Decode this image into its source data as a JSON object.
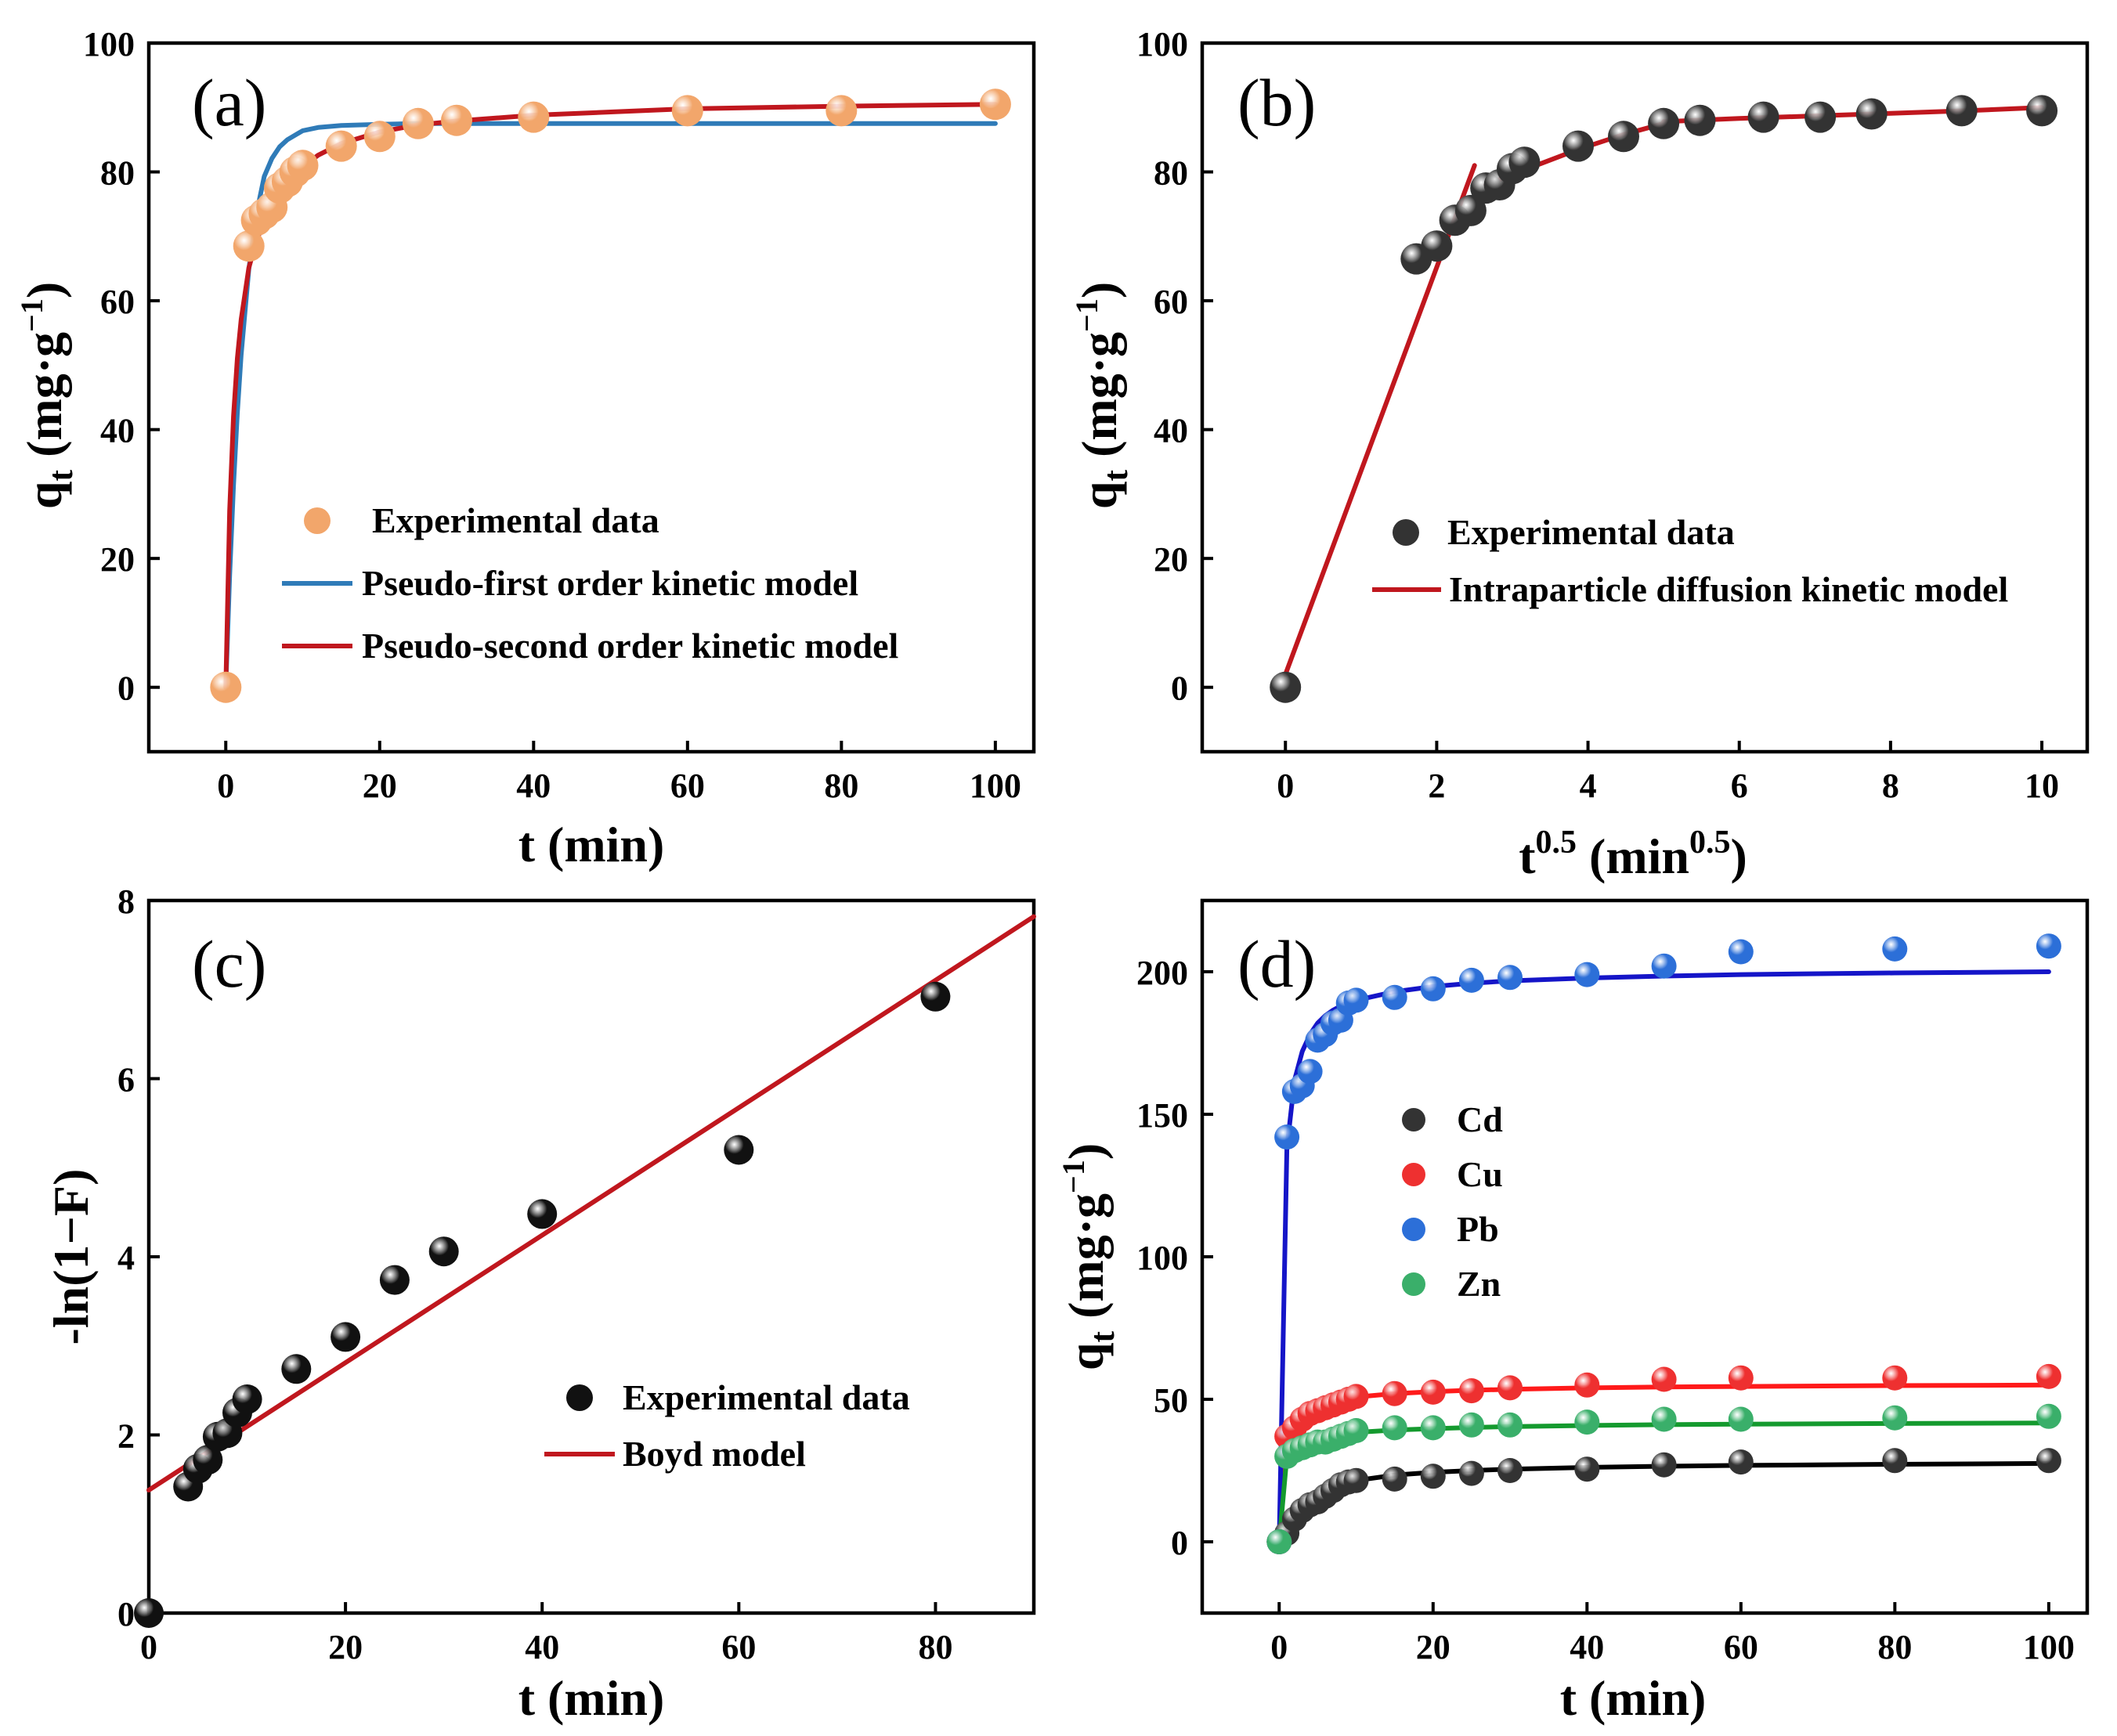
{
  "chart_data": [
    {
      "type": "scatter",
      "panel": "(a)",
      "xlabel": "t (min)",
      "ylabel": {
        "main": "q",
        "sub": "t",
        "unit_open": " (mg·g",
        "unit_sup": "−1",
        "unit_close": ")"
      },
      "xlim": [
        -10,
        105
      ],
      "ylim": [
        -10,
        100
      ],
      "xticks": [
        "0",
        "20",
        "40",
        "60",
        "80",
        "100"
      ],
      "xtick_values": [
        0,
        20,
        40,
        60,
        80,
        100
      ],
      "yticks": [
        "0",
        "20",
        "40",
        "60",
        "80",
        "100"
      ],
      "ytick_values": [
        0,
        20,
        40,
        60,
        80,
        100
      ],
      "legend": {
        "position": "center-left",
        "entries": [
          "Experimental data",
          "Pseudo-first order kinetic model",
          "Pseudo-second order kinetic model"
        ]
      },
      "series": [
        {
          "name": "Experimental data",
          "kind": "points",
          "color": "#F2A66B",
          "x": [
            0,
            3,
            4,
            5,
            6,
            7,
            8,
            9,
            10,
            15,
            20,
            25,
            30,
            40,
            60,
            80,
            100
          ],
          "y": [
            0,
            68.5,
            72.5,
            73.5,
            74.5,
            77.5,
            78.5,
            80,
            81,
            84,
            85.5,
            87.5,
            88,
            88.5,
            89.5,
            89.5,
            90.5
          ]
        },
        {
          "name": "Pseudo-first order kinetic model",
          "kind": "line",
          "color": "#2F7BB8",
          "x": [
            0,
            0.5,
            1,
            1.5,
            2,
            3,
            4,
            5,
            6,
            7,
            8,
            10,
            12,
            15,
            20,
            25,
            30,
            40,
            60,
            80,
            100
          ],
          "y": [
            0,
            17.3,
            31.2,
            42.5,
            51.6,
            64.9,
            73.6,
            79.3,
            82.1,
            83.9,
            85.0,
            86.4,
            86.9,
            87.2,
            87.4,
            87.5,
            87.5,
            87.5,
            87.5,
            87.5,
            87.5
          ]
        },
        {
          "name": "Pseudo-second order kinetic model",
          "kind": "line",
          "color": "#C0171E",
          "x": [
            0,
            0.5,
            1,
            1.5,
            2,
            3,
            4,
            5,
            6,
            7,
            8,
            10,
            12,
            15,
            20,
            25,
            30,
            40,
            60,
            80,
            100
          ],
          "y": [
            0,
            27.4,
            42.0,
            51.0,
            57.1,
            65.1,
            69.4,
            72.2,
            74.5,
            76.6,
            78.2,
            80.8,
            82.6,
            84.4,
            86.2,
            87.3,
            87.9,
            88.8,
            89.8,
            90.2,
            90.5
          ]
        }
      ]
    },
    {
      "type": "scatter",
      "panel": "(b)",
      "xlabel": {
        "base": "t",
        "sup": "0.5",
        "mid": " (min",
        "sup2": "0.5",
        "close": ")"
      },
      "ylabel": {
        "main": "q",
        "sub": "t",
        "unit_open": " (mg·g",
        "unit_sup": "−1",
        "unit_close": ")"
      },
      "xlim": [
        -1.1,
        10.6
      ],
      "ylim": [
        -10,
        100
      ],
      "xticks": [
        "0",
        "2",
        "4",
        "6",
        "8",
        "10"
      ],
      "xtick_values": [
        0,
        2,
        4,
        6,
        8,
        10
      ],
      "yticks": [
        "0",
        "20",
        "40",
        "60",
        "80",
        "100"
      ],
      "ytick_values": [
        0,
        20,
        40,
        60,
        80,
        100
      ],
      "legend": {
        "position": "center-right",
        "entries": [
          "Experimental data",
          "Intraparticle diffusion kinetic model"
        ]
      },
      "series": [
        {
          "name": "Experimental data",
          "kind": "points",
          "color": "#333333",
          "x": [
            0,
            1.73,
            2.0,
            2.24,
            2.45,
            2.65,
            2.83,
            3.0,
            3.16,
            3.87,
            4.47,
            5.0,
            5.48,
            6.32,
            7.07,
            7.75,
            8.94,
            10.0
          ],
          "y": [
            0,
            66.5,
            68.5,
            72.5,
            74,
            77.5,
            78,
            80.5,
            81.5,
            84,
            85.5,
            87.5,
            88,
            88.5,
            88.5,
            89,
            89.5,
            89.5
          ]
        },
        {
          "name": "Intraparticle diffusion kinetic model",
          "kind": "line",
          "color": "#C0171E",
          "segments": [
            {
              "x": [
                0,
                2.5
              ],
              "y": [
                2,
                81
              ]
            },
            {
              "x": [
                2.65,
                3.2,
                3.87,
                4.47,
                5.0
              ],
              "y": [
                78,
                80.5,
                83.5,
                85.8,
                87.5
              ]
            },
            {
              "x": [
                5.0,
                6.0,
                7.0,
                8.0,
                9.0,
                10.0
              ],
              "y": [
                87.8,
                88.3,
                88.7,
                89.1,
                89.5,
                90.0
              ]
            }
          ]
        }
      ]
    },
    {
      "type": "scatter",
      "panel": "(c)",
      "xlabel": "t (min)",
      "ylabel": "-ln(1−F)",
      "xlim": [
        0,
        90
      ],
      "ylim": [
        0,
        8
      ],
      "xticks": [
        "0",
        "20",
        "40",
        "60",
        "80"
      ],
      "xtick_values": [
        0,
        20,
        40,
        60,
        80
      ],
      "yticks": [
        "0",
        "2",
        "4",
        "6",
        "8"
      ],
      "ytick_values": [
        0,
        2,
        4,
        6,
        8
      ],
      "legend": {
        "position": "lower-right",
        "entries": [
          "Experimental data",
          "Boyd model"
        ]
      },
      "series": [
        {
          "name": "Experimental data",
          "kind": "points",
          "color": "#111111",
          "x": [
            0,
            4,
            5,
            6,
            7,
            8,
            9,
            10,
            15,
            20,
            25,
            30,
            40,
            60,
            80
          ],
          "y": [
            0,
            1.42,
            1.62,
            1.72,
            1.98,
            2.02,
            2.25,
            2.4,
            2.74,
            3.1,
            3.74,
            4.06,
            4.48,
            5.2,
            6.92
          ]
        },
        {
          "name": "Boyd model",
          "kind": "line",
          "color": "#C0171E",
          "x": [
            0,
            90
          ],
          "y": [
            1.38,
            7.82
          ]
        }
      ]
    },
    {
      "type": "scatter",
      "panel": "(d)",
      "xlabel": "t (min)",
      "ylabel": {
        "main": "q",
        "sub": "t",
        "unit_open": " (mg·g",
        "unit_sup": "−1",
        "unit_close": ")"
      },
      "xlim": [
        -10,
        105
      ],
      "ylim": [
        -25,
        225
      ],
      "xticks": [
        "0",
        "20",
        "40",
        "60",
        "80",
        "100"
      ],
      "xtick_values": [
        0,
        20,
        40,
        60,
        80,
        100
      ],
      "yticks": [
        "0",
        "50",
        "100",
        "150",
        "200"
      ],
      "ytick_values": [
        0,
        50,
        100,
        150,
        200
      ],
      "legend": {
        "position": "center-left",
        "entries": [
          "Cd",
          "Cu",
          "Pb",
          "Zn"
        ]
      },
      "x": [
        0,
        1,
        2,
        3,
        4,
        5,
        6,
        7,
        8,
        9,
        10,
        15,
        20,
        25,
        30,
        40,
        50,
        60,
        80,
        100
      ],
      "series": [
        {
          "name": "Cd",
          "color": "#333333",
          "line_color": "#000000",
          "values": [
            0,
            3,
            8,
            11,
            13,
            14,
            16,
            18,
            20,
            21,
            21.5,
            22,
            23,
            24,
            25,
            25.5,
            27,
            28,
            28.5,
            28.5
          ],
          "fit": [
            0,
            6.5,
            10.6,
            13.5,
            15.6,
            17.2,
            18.4,
            19.4,
            20.2,
            20.9,
            21.5,
            23.4,
            24.4,
            25.0,
            25.5,
            26.1,
            26.5,
            26.8,
            27.2,
            27.5
          ]
        },
        {
          "name": "Cu",
          "color": "#EE3030",
          "line_color": "#FF1A1A",
          "values": [
            0,
            37,
            40,
            43,
            45,
            46,
            47,
            48,
            49,
            50,
            51,
            52,
            52.5,
            53,
            54,
            55,
            57,
            57.5,
            57.5,
            58
          ],
          "fit": [
            0,
            35.0,
            41.5,
            44.5,
            46.4,
            47.7,
            48.6,
            49.3,
            49.9,
            50.4,
            50.8,
            52.0,
            52.7,
            53.2,
            53.5,
            54.0,
            54.3,
            54.5,
            54.8,
            55.0
          ]
        },
        {
          "name": "Pb",
          "color": "#2C6FD8",
          "line_color": "#1515C8",
          "values": [
            0,
            142,
            158,
            160,
            165,
            176,
            178,
            182,
            183,
            189,
            190,
            191,
            194,
            197,
            198,
            199,
            202,
            207,
            208,
            209
          ],
          "fit": [
            0,
            138,
            162,
            172,
            178,
            182,
            184.6,
            186.5,
            188.0,
            189.1,
            190.0,
            193.0,
            194.8,
            196.0,
            196.8,
            197.8,
            198.5,
            199.0,
            199.6,
            200.0
          ]
        },
        {
          "name": "Zn",
          "color": "#3AAF6A",
          "line_color": "#149A2E",
          "values": [
            0,
            30,
            32,
            33,
            34,
            35,
            35,
            36,
            37,
            38,
            39,
            40,
            40,
            41,
            41,
            42,
            43,
            43,
            43.5,
            44
          ],
          "fit": [
            0,
            30.0,
            33.5,
            35.0,
            35.9,
            36.6,
            37.1,
            37.5,
            37.8,
            38.1,
            38.4,
            39.2,
            39.7,
            40.1,
            40.4,
            40.8,
            41.1,
            41.3,
            41.5,
            41.7
          ]
        }
      ]
    }
  ]
}
